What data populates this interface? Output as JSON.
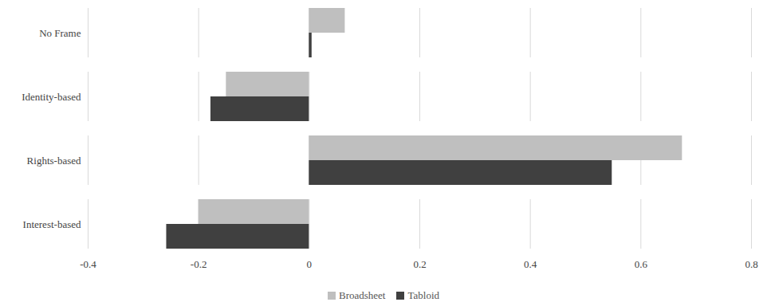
{
  "chart_data": {
    "type": "bar",
    "orientation": "horizontal",
    "grid": true,
    "legend": "bottom",
    "categories": [
      "No Frame",
      "Identity-based",
      "Rights-based",
      "Interest-based"
    ],
    "series": [
      {
        "name": "Broadsheet",
        "color": "#bfbfbf",
        "values": [
          0.065,
          -0.15,
          0.675,
          -0.2
        ]
      },
      {
        "name": "Tabloid",
        "color": "#404040",
        "values": [
          0.005,
          -0.178,
          0.548,
          -0.258
        ]
      }
    ],
    "xlim": [
      -0.4,
      0.8
    ],
    "xticks": [
      -0.4,
      -0.2,
      0,
      0.2,
      0.4,
      0.6,
      0.8
    ]
  }
}
